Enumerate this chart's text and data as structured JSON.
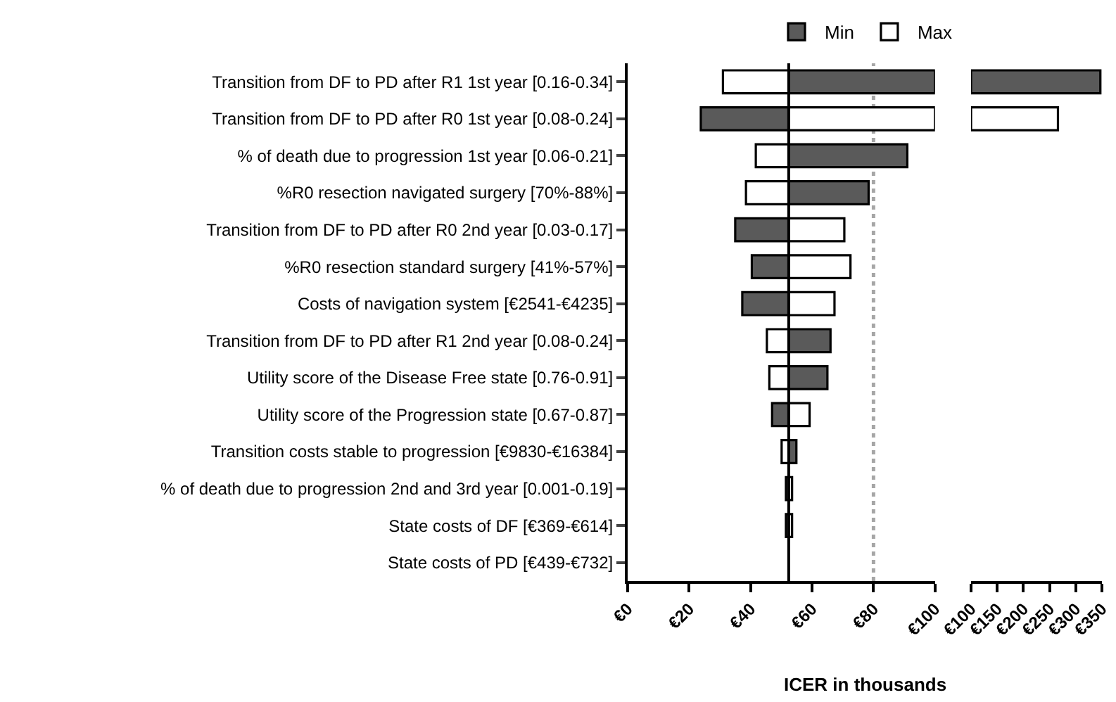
{
  "chart_data": [
    {
      "type": "bar",
      "orientation": "horizontal",
      "xlabel": "ICER in thousands",
      "tick_labels": true,
      "categories": [
        "Transition from DF to PD after R1 1st year [0.16-0.34]",
        "Transition from DF to PD after R0 1st year [0.08-0.24]",
        "% of death due to progression 1st year [0.06-0.21]",
        "%R0 resection navigated surgery [70%-88%]",
        "Transition from DF to PD after R0 2nd year [0.03-0.17]",
        "%R0 resection standard surgery [41%-57%]",
        "Costs of navigation system [€2541-€4235]",
        "Transition from DF to PD after R1 2nd year [0.08-0.24]",
        "Utility score of the Disease Free state [0.76-0.91]",
        "Utility score of the Progression state [0.67-0.87]",
        "Transition costs stable to progression [€9830-€16384]",
        "% of death due to progression 2nd and 3rd year [0.001-0.19]",
        "State costs of DF [€369-€614]",
        "State costs of PD [€439-€732]"
      ],
      "series": [
        {
          "name": "Min",
          "color": "#5a5a5a",
          "base": [
            52.4,
            52.4,
            52.4,
            52.4,
            52.4,
            52.4,
            52.4,
            52.4,
            52.4,
            52.4,
            52.4,
            52.4,
            52.4,
            null
          ],
          "values": [
            47.6,
            -28.6,
            38.6,
            26.0,
            -17.4,
            -12.0,
            -15.1,
            13.6,
            12.6,
            -5.4,
            2.5,
            -0.9,
            -0.9,
            null
          ]
        },
        {
          "name": "Max",
          "color": "#ffffff",
          "base": [
            52.4,
            52.4,
            52.4,
            52.4,
            52.4,
            52.4,
            52.4,
            52.4,
            52.4,
            52.4,
            52.4,
            52.4,
            52.4,
            null
          ],
          "values": [
            -21.4,
            47.6,
            -10.7,
            -13.9,
            18.1,
            20.1,
            14.9,
            -7.1,
            -6.3,
            6.8,
            -2.3,
            1.1,
            1.1,
            null
          ]
        }
      ],
      "xlim": [
        0,
        100
      ],
      "xticks": [
        {
          "value": 0,
          "label": "€0"
        },
        {
          "value": 20,
          "label": "€20"
        },
        {
          "value": 40,
          "label": "€40"
        },
        {
          "value": 60,
          "label": "€60"
        },
        {
          "value": 80,
          "label": "€80"
        },
        {
          "value": 100,
          "label": "€100"
        }
      ],
      "ref_lines": [
        {
          "axis": "x",
          "value": 80,
          "color": "#a6a6a6",
          "line_style": "dotted"
        },
        {
          "axis": "x",
          "value": 52.4,
          "color": "#000000",
          "line_style": "solid"
        }
      ],
      "legend": "top"
    },
    {
      "type": "bar",
      "orientation": "horizontal",
      "tick_labels": "x",
      "categories": [
        null,
        null,
        null,
        null,
        null,
        null,
        null,
        null,
        null,
        null,
        null,
        null,
        null,
        null
      ],
      "series": [
        {
          "color": "#5a5a5a",
          "base": [
            100,
            null,
            null,
            null,
            null,
            null,
            null,
            null,
            null,
            null,
            null,
            null,
            null,
            null
          ],
          "values": [
            247,
            null,
            null,
            null,
            null,
            null,
            null,
            null,
            null,
            null,
            null,
            null,
            null,
            null
          ]
        },
        {
          "color": "#ffffff",
          "base": [
            null,
            100,
            null,
            null,
            null,
            null,
            null,
            null,
            null,
            null,
            null,
            null,
            null,
            null
          ],
          "values": [
            null,
            166,
            null,
            null,
            null,
            null,
            null,
            null,
            null,
            null,
            null,
            null,
            null,
            null
          ]
        }
      ],
      "xlim": [
        100,
        350
      ],
      "xticks": [
        {
          "value": 100,
          "label": "€100"
        },
        {
          "value": 150,
          "label": "€150"
        },
        {
          "value": 200,
          "label": "€200"
        },
        {
          "value": 250,
          "label": "€250"
        },
        {
          "value": 300,
          "label": "€300"
        },
        {
          "value": 350,
          "label": "€350"
        }
      ]
    }
  ]
}
